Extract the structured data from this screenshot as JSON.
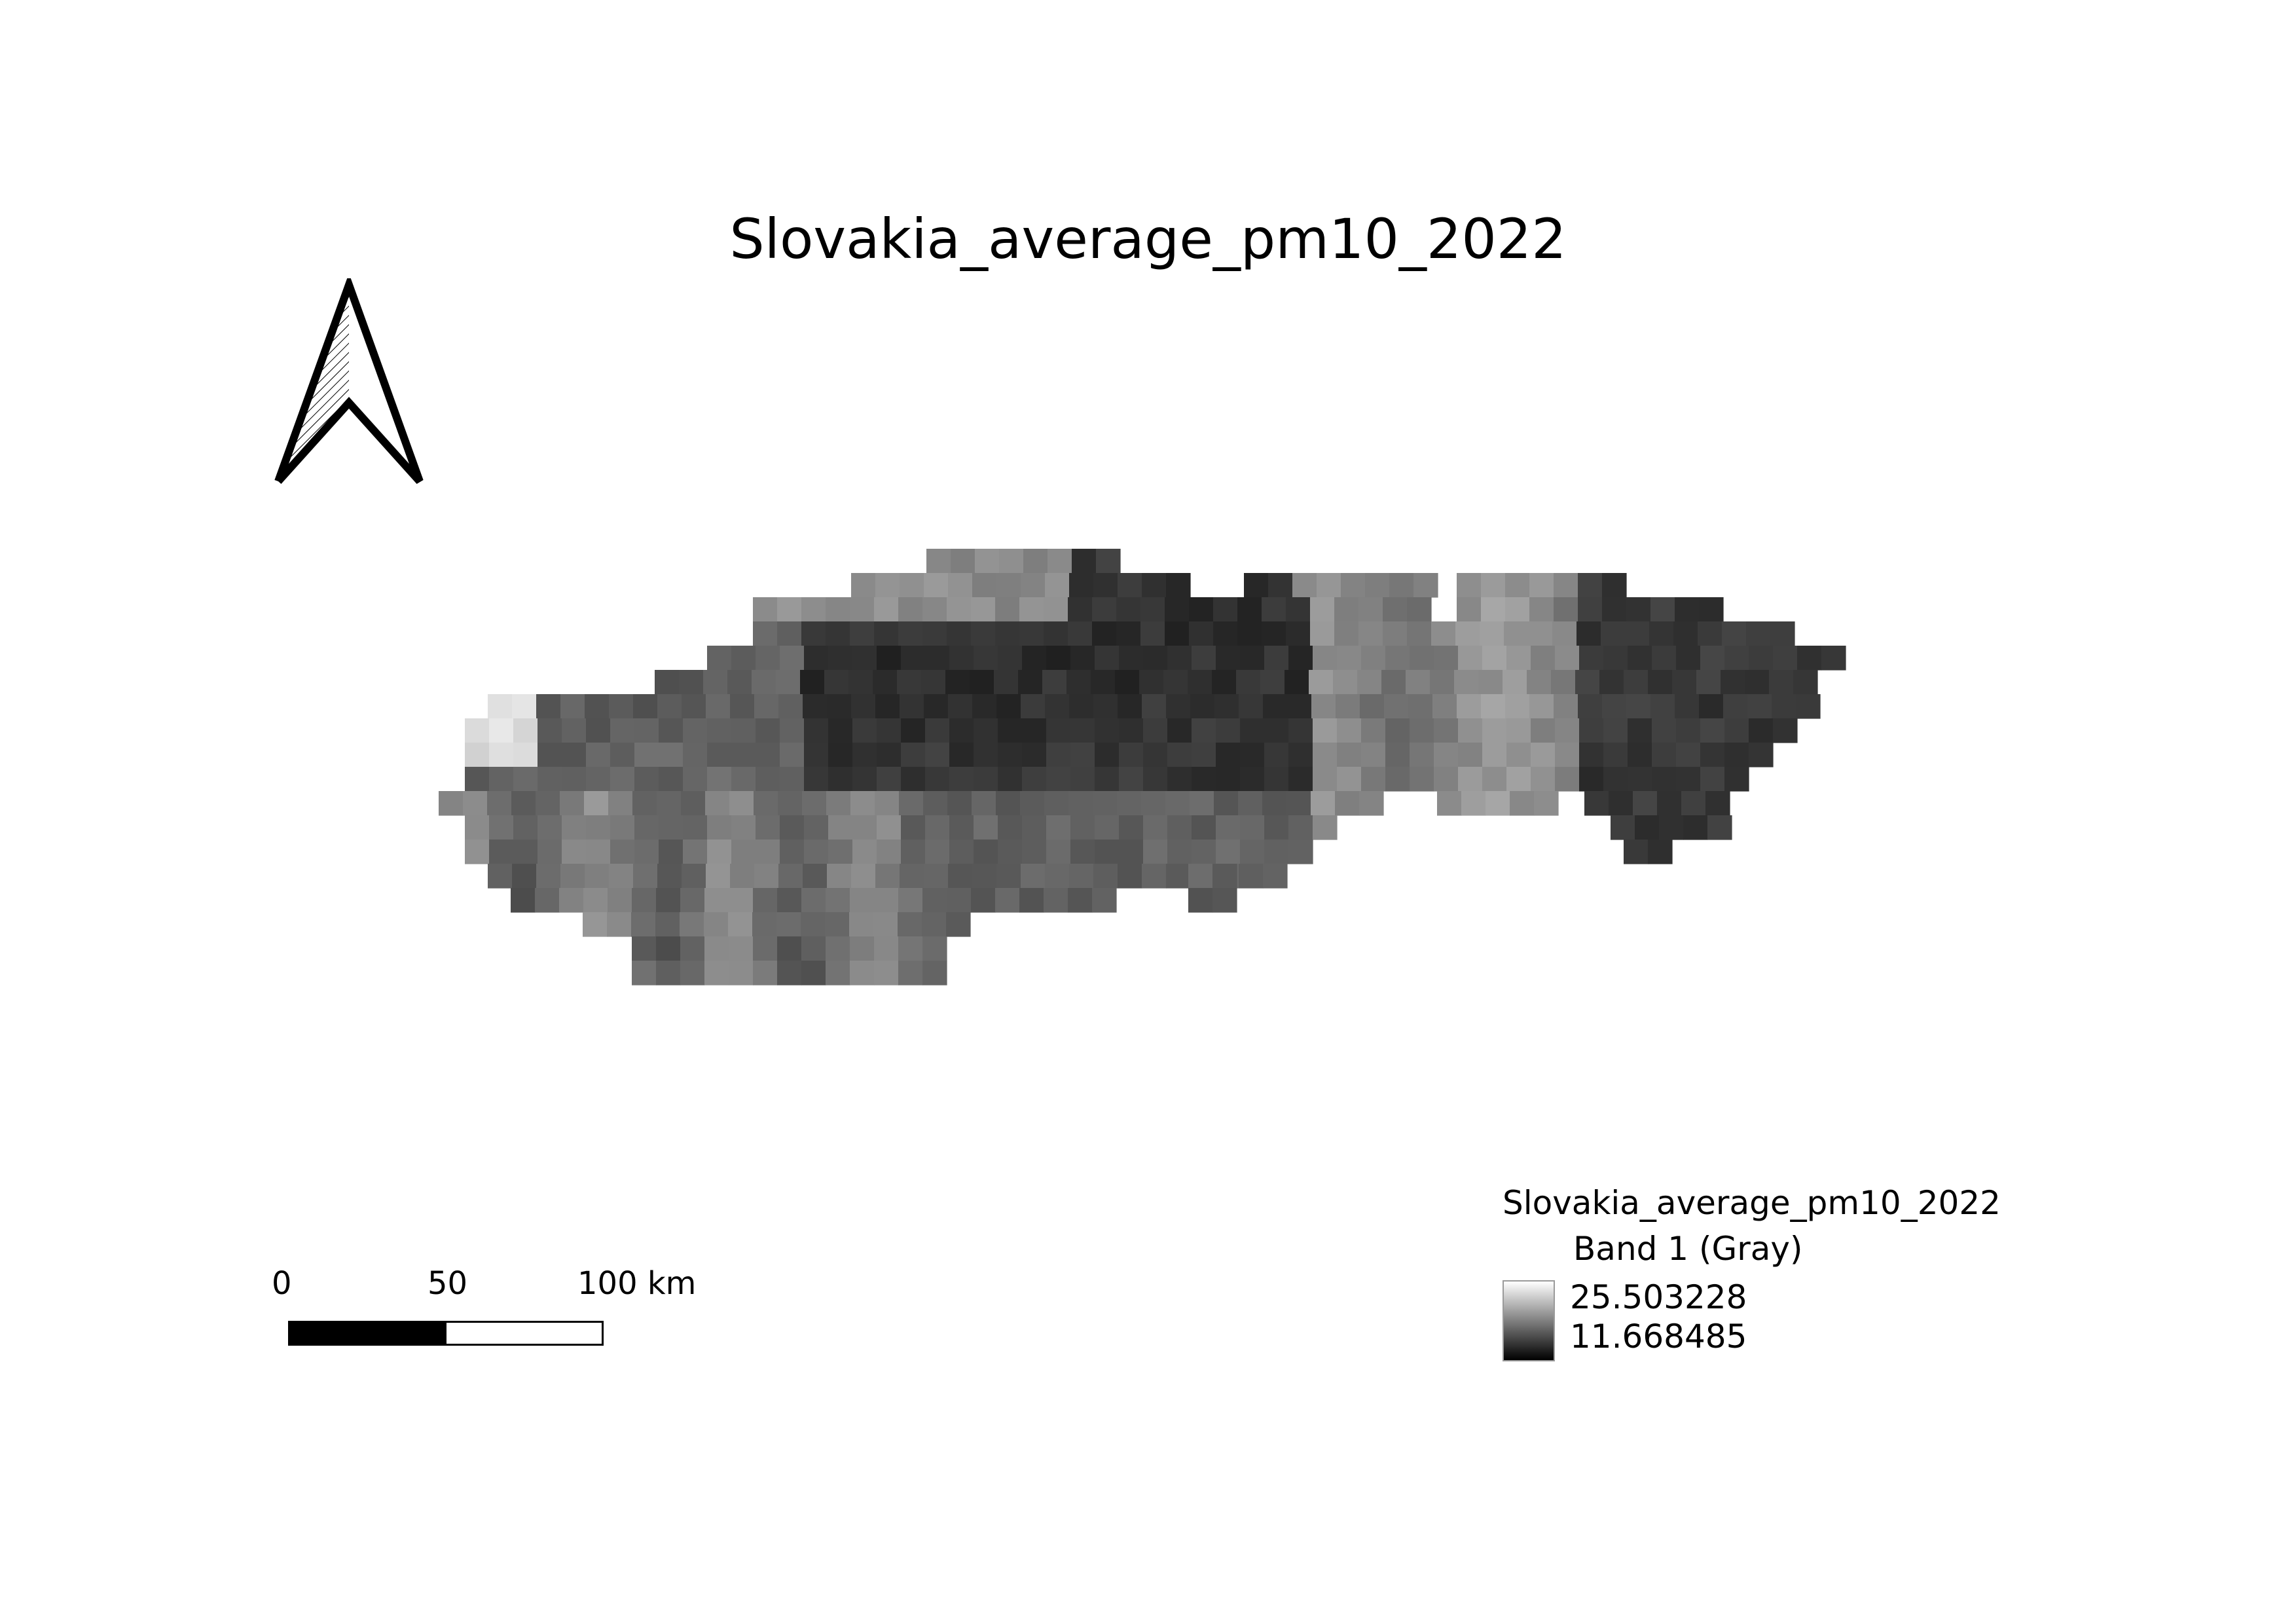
{
  "title": "Slovakia_average_pm10_2022",
  "north_arrow": {
    "icon": "north-arrow-icon"
  },
  "scalebar": {
    "labels": [
      "0",
      "50",
      "100 km"
    ],
    "segment_colors": [
      "#000000",
      "#ffffff"
    ]
  },
  "legend": {
    "layer_name": "Slovakia_average_pm10_2022",
    "band_label": "Band 1 (Gray)",
    "max_value": "25.503228",
    "min_value": "11.668485",
    "ramp_colors": [
      "#ffffff",
      "#000000"
    ]
  },
  "raster": {
    "description_colors": {
      "low": "#000000",
      "high": "#ffffff"
    },
    "value_range": [
      11.668485,
      25.503228
    ],
    "rows": [
      "..............................................................",
      ".....................................................................",
      ".......................................................................",
      "..........................................................................",
      "......................................................................",
      "......................................................................",
      "...............................................................",
      "..............................................",
      "..........................................",
      ".........................................",
      "......................................"
    ]
  }
}
